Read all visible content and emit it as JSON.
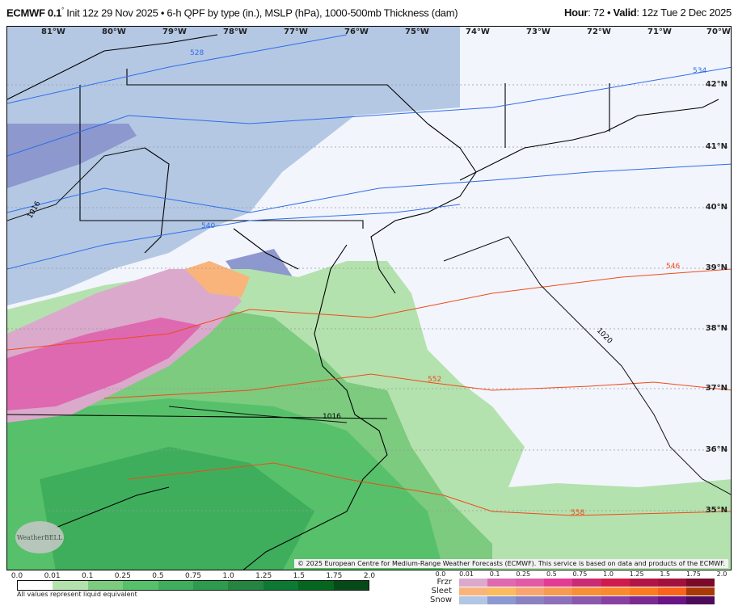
{
  "header": {
    "model": "ECMWF 0.1",
    "deg": "°",
    "init": " Init 12z 29 Nov 2025 • 6-h QPF by type (in.), MSLP (hPa), 1000-500mb Thickness (dam)",
    "hour_label": "Hour",
    "hour": ": 72 • ",
    "valid_label": "Valid",
    "valid": ": 12z Tue 2 Dec 2025"
  },
  "map": {
    "lon_labels": [
      "81°W",
      "80°W",
      "79°W",
      "78°W",
      "77°W",
      "76°W",
      "75°W",
      "74°W",
      "73°W",
      "72°W",
      "71°W",
      "70°W"
    ],
    "lat_labels": [
      "42°N",
      "41°N",
      "40°N",
      "39°N",
      "38°N",
      "37°N",
      "36°N",
      "35°N"
    ],
    "thickness_labels": [
      "528",
      "534",
      "540",
      "546",
      "552",
      "558"
    ],
    "mslp_labels": [
      "1016",
      "1016",
      "1020"
    ],
    "copyright": "© 2025 European Centre for Medium-Range Weather Forecasts (ECMWF). This service is based on data and products of the ECMWF.",
    "logo": "WeatherBELL"
  },
  "qpf_legend": {
    "ticks": [
      "0.0",
      "0.01",
      "0.1",
      "0.25",
      "0.5",
      "0.75",
      "1.0",
      "1.25",
      "1.5",
      "1.75",
      "2.0"
    ],
    "colors": [
      "#ffffff",
      "#b4e2ae",
      "#7ccb7f",
      "#56c16a",
      "#3fae5c",
      "#2e9a4e",
      "#248440",
      "#0c7a33",
      "#05661f",
      "#044b18"
    ],
    "note": "All values represent liquid equivalent"
  },
  "ptype_legend": {
    "ticks": [
      "0.0",
      "0.01",
      "0.1",
      "0.25",
      "0.5",
      "0.75",
      "1.0",
      "1.25",
      "1.5",
      "1.75",
      "2.0"
    ],
    "rows": [
      {
        "label": "Frzr",
        "colors": [
          "#dba9cb",
          "#de69b0",
          "#e05aa5",
          "#e33b93",
          "#cb2a75",
          "#d11a4c",
          "#b21445",
          "#a4103e",
          "#7a0a2a"
        ]
      },
      {
        "label": "Sleet",
        "colors": [
          "#f9b47c",
          "#fbbc5f",
          "#f8a56f",
          "#f79a52",
          "#f88f38",
          "#fb8a2c",
          "#fb7c20",
          "#f9631b",
          "#a83a08"
        ]
      },
      {
        "label": "Snow",
        "colors": [
          "#b2c6e4",
          "#8c98cf",
          "#8a82c0",
          "#8d6fbb",
          "#8c58ac",
          "#8a3fa3",
          "#7a2a92",
          "#6b1485",
          "#4d0b5a"
        ]
      }
    ]
  },
  "colors": {
    "thickness_cold": "#2f6de8",
    "thickness_warm": "#f04a1a",
    "isobar": "#111111"
  }
}
